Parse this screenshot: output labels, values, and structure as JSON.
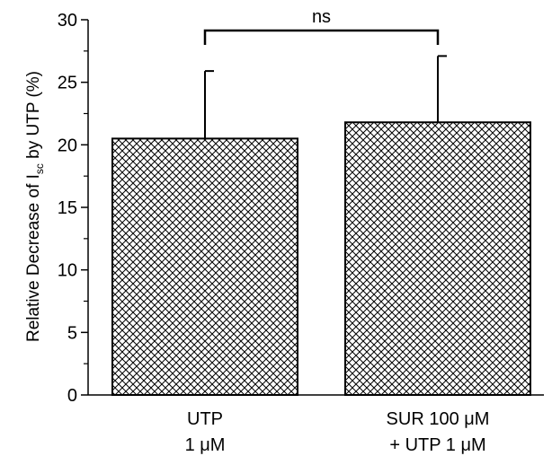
{
  "chart_data": {
    "type": "bar",
    "categories": [
      {
        "line1": "UTP",
        "line2": "1 μM"
      },
      {
        "line1": "SUR 100 μM",
        "line2": "+ UTP 1 μM"
      }
    ],
    "values": [
      20.5,
      21.8
    ],
    "errors": [
      5.4,
      5.3
    ],
    "ylabel": {
      "before": "Relative Decrease of I",
      "sub": "sc",
      "after": " by UTP (%)"
    },
    "xlabel": "",
    "ylim": [
      0,
      30
    ],
    "yticks": [
      0,
      5,
      10,
      15,
      20,
      25,
      30
    ],
    "significance": {
      "label": "ns",
      "between": [
        0,
        1
      ]
    },
    "bar_pattern": "crosshatch",
    "colors": {
      "bar_stroke": "#000000",
      "hatch": "#000000",
      "background": "#ffffff"
    }
  }
}
